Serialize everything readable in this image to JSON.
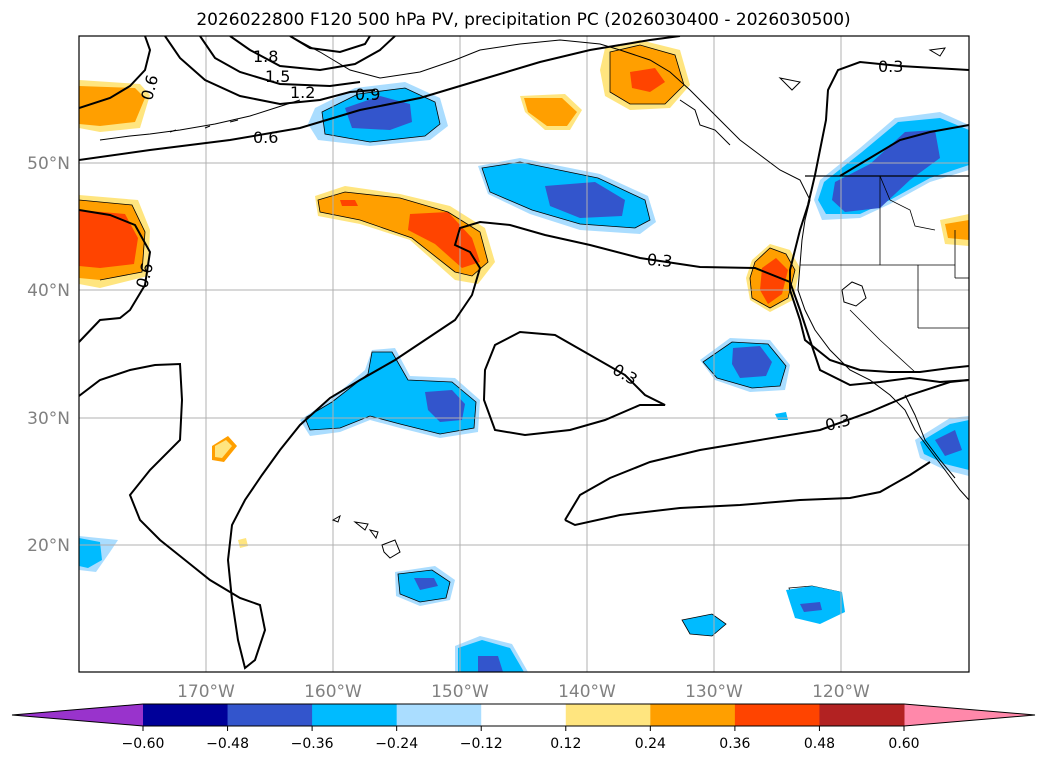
{
  "title": "2026022800 F120 500 hPa PV, precipitation PC (2026030400 - 2026030500)",
  "axes": {
    "lat_labels": [
      "50°N",
      "40°N",
      "30°N",
      "20°N"
    ],
    "lon_labels": [
      "170°W",
      "160°W",
      "150°W",
      "140°W",
      "130°W",
      "120°W"
    ]
  },
  "colorbar": {
    "ticks": [
      "−0.60",
      "−0.48",
      "−0.36",
      "−0.24",
      "−0.12",
      "0.12",
      "0.24",
      "0.36",
      "0.48",
      "0.60"
    ],
    "colors": {
      "under": "#9933cc",
      "bins": [
        "#000099",
        "#3355cc",
        "#00bbff",
        "#aaddff",
        "#ffffff",
        "#ffe57f",
        "#ff9f00",
        "#ff4400",
        "#b22222"
      ],
      "over": "#ff88aa"
    }
  },
  "contour_labels": [
    "1.8",
    "1.5",
    "1.2",
    "0.9",
    "0.6",
    "0.6",
    "0.6",
    "0.3",
    "0.3",
    "0.3",
    "0.3"
  ],
  "colors": {
    "grid": "#b0b0b0",
    "contour": "#000000",
    "coast": "#000000",
    "tick_text": "#808080"
  }
}
